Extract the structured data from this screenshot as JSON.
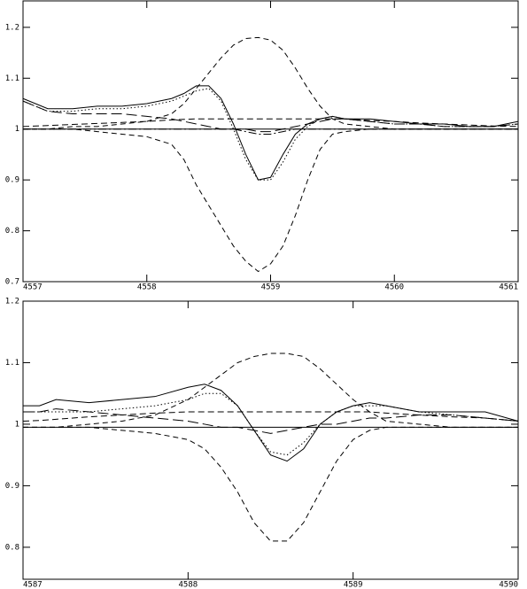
{
  "chart_data": [
    {
      "type": "line",
      "x": [
        4557,
        4557.2,
        4557.4,
        4557.6,
        4557.8,
        4558,
        4558.2,
        4558.3,
        4558.4,
        4558.5,
        4558.6,
        4558.7,
        4558.8,
        4558.9,
        4559,
        4559.1,
        4559.2,
        4559.3,
        4559.4,
        4559.5,
        4559.6,
        4559.8,
        4560,
        4560.2,
        4560.4,
        4560.6,
        4560.8,
        4561
      ],
      "xlim": [
        4557,
        4561
      ],
      "xticks": [
        4557,
        4558,
        4559,
        4560,
        4561
      ],
      "ylim": [
        0.7,
        1.252
      ],
      "yticks": [
        0.7,
        0.8,
        0.9,
        1,
        1.1,
        1.2
      ],
      "series": [
        {
          "color": "#000",
          "dash": "none",
          "values": [
            1.06,
            1.04,
            1.04,
            1.045,
            1.045,
            1.05,
            1.06,
            1.07,
            1.085,
            1.085,
            1.06,
            1.01,
            0.95,
            0.9,
            0.905,
            0.95,
            0.99,
            1.01,
            1.02,
            1.025,
            1.02,
            1.02,
            1.015,
            1.01,
            1.01,
            1.005,
            1.005,
            1.015
          ]
        },
        {
          "color": "#000",
          "dash": "1.5,2.5",
          "values": [
            1.055,
            1.035,
            1.035,
            1.04,
            1.04,
            1.045,
            1.055,
            1.065,
            1.075,
            1.08,
            1.055,
            1.0,
            0.94,
            0.9,
            0.9,
            0.935,
            0.98,
            1.005,
            1.02,
            1.025,
            1.02,
            1.015,
            1.01,
            1.01,
            1.005,
            1.005,
            1.005,
            1.01
          ]
        },
        {
          "color": "#000",
          "dash": "12,5",
          "values": [
            1.055,
            1.035,
            1.03,
            1.03,
            1.03,
            1.025,
            1.02,
            1.015,
            1.01,
            1.005,
            1.0,
            1.0,
            1.0,
            0.995,
            0.995,
            1.0,
            1.005,
            1.01,
            1.015,
            1.02,
            1.02,
            1.015,
            1.01,
            1.01,
            1.005,
            1.005,
            1.005,
            1.01
          ]
        },
        {
          "color": "#000",
          "dash": "6,4",
          "values": [
            1.0,
            1.0,
            1.005,
            1.005,
            1.01,
            1.015,
            1.03,
            1.05,
            1.08,
            1.11,
            1.14,
            1.165,
            1.178,
            1.18,
            1.175,
            1.155,
            1.12,
            1.08,
            1.045,
            1.02,
            1.01,
            1.005,
            1.0,
            1.0,
            1.0,
            1.0,
            1.0,
            1.0
          ]
        },
        {
          "color": "#000",
          "dash": "6,4",
          "values": [
            1.0,
            1.0,
            1.0,
            0.995,
            0.99,
            0.985,
            0.97,
            0.94,
            0.89,
            0.85,
            0.81,
            0.77,
            0.74,
            0.72,
            0.735,
            0.77,
            0.83,
            0.9,
            0.96,
            0.99,
            0.995,
            1.0,
            1.0,
            1.0,
            1.0,
            1.0,
            1.0,
            1.0
          ]
        },
        {
          "color": "#000",
          "dash": "7,4",
          "values": [
            1.005,
            1.007,
            1.009,
            1.011,
            1.013,
            1.015,
            1.018,
            1.019,
            1.02,
            1.02,
            1.02,
            1.02,
            1.02,
            1.02,
            1.02,
            1.02,
            1.02,
            1.02,
            1.02,
            1.02,
            1.02,
            1.017,
            1.015,
            1.012,
            1.01,
            1.008,
            1.006,
            1.005
          ]
        },
        {
          "color": "#000",
          "dash": "none",
          "values": [
            1,
            1,
            1,
            1,
            1,
            1,
            1,
            1,
            1,
            1,
            1,
            1,
            1,
            1,
            1,
            1,
            1,
            1,
            1,
            1,
            1,
            1,
            1,
            1,
            1,
            1,
            1,
            1
          ]
        },
        {
          "color": "#000",
          "dash": "9,3,2,3",
          "values": [
            1,
            1,
            1,
            1,
            1,
            1,
            1,
            1,
            1,
            1,
            1,
            1,
            0.995,
            0.99,
            0.99,
            0.995,
            1,
            1,
            1,
            1,
            1,
            1,
            1,
            1,
            1,
            1,
            1,
            1
          ]
        }
      ]
    },
    {
      "type": "line",
      "x": [
        4587,
        4587.1,
        4587.2,
        4587.4,
        4587.6,
        4587.8,
        4588,
        4588.1,
        4588.2,
        4588.3,
        4588.4,
        4588.5,
        4588.6,
        4588.7,
        4588.8,
        4588.9,
        4589,
        4589.1,
        4589.2,
        4589.4,
        4589.6,
        4589.8,
        4590
      ],
      "xlim": [
        4587,
        4590
      ],
      "xticks": [
        4587,
        4588,
        4589,
        4590
      ],
      "ylim": [
        0.748,
        1.2
      ],
      "yticks": [
        0.8,
        0.9,
        1,
        1.1,
        1.2
      ],
      "series": [
        {
          "color": "#000",
          "dash": "none",
          "values": [
            1.03,
            1.03,
            1.04,
            1.035,
            1.04,
            1.045,
            1.06,
            1.065,
            1.055,
            1.03,
            0.99,
            0.95,
            0.94,
            0.96,
            1.0,
            1.02,
            1.03,
            1.035,
            1.03,
            1.02,
            1.02,
            1.02,
            1.005
          ]
        },
        {
          "color": "#000",
          "dash": "1.5,2.5",
          "values": [
            1.02,
            1.02,
            1.02,
            1.02,
            1.025,
            1.03,
            1.04,
            1.05,
            1.05,
            1.03,
            0.99,
            0.955,
            0.95,
            0.97,
            1.0,
            1.02,
            1.03,
            1.03,
            1.03,
            1.02,
            1.015,
            1.01,
            1.005
          ]
        },
        {
          "color": "#000",
          "dash": "12,5",
          "values": [
            1.02,
            1.02,
            1.025,
            1.02,
            1.015,
            1.01,
            1.005,
            1.0,
            0.995,
            0.995,
            0.99,
            0.985,
            0.99,
            0.995,
            1.0,
            1.0,
            1.005,
            1.01,
            1.01,
            1.015,
            1.015,
            1.01,
            1.005
          ]
        },
        {
          "color": "#000",
          "dash": "6,4",
          "values": [
            0.995,
            0.995,
            0.995,
            1.0,
            1.005,
            1.015,
            1.04,
            1.06,
            1.08,
            1.1,
            1.11,
            1.115,
            1.115,
            1.11,
            1.09,
            1.065,
            1.04,
            1.02,
            1.005,
            1.0,
            0.995,
            0.995,
            0.995
          ]
        },
        {
          "color": "#000",
          "dash": "6,4",
          "values": [
            0.995,
            0.995,
            0.995,
            0.995,
            0.99,
            0.985,
            0.975,
            0.96,
            0.93,
            0.89,
            0.84,
            0.81,
            0.81,
            0.84,
            0.89,
            0.94,
            0.975,
            0.99,
            0.995,
            0.995,
            0.995,
            0.995,
            0.995
          ]
        },
        {
          "color": "#000",
          "dash": "7,4",
          "values": [
            1.005,
            1.006,
            1.008,
            1.012,
            1.015,
            1.018,
            1.02,
            1.02,
            1.02,
            1.02,
            1.02,
            1.02,
            1.02,
            1.02,
            1.02,
            1.02,
            1.02,
            1.02,
            1.018,
            1.015,
            1.012,
            1.01,
            1.005
          ]
        },
        {
          "color": "#000",
          "dash": "none",
          "values": [
            0.995,
            0.995,
            0.995,
            0.995,
            0.995,
            0.995,
            0.995,
            0.995,
            0.995,
            0.995,
            0.995,
            0.995,
            0.995,
            0.995,
            0.995,
            0.995,
            0.995,
            0.995,
            0.995,
            0.995,
            0.995,
            0.995,
            0.995
          ]
        }
      ]
    }
  ]
}
